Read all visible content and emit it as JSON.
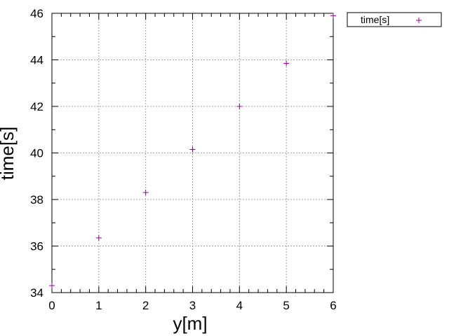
{
  "chart_data": {
    "type": "scatter",
    "title": "",
    "xlabel": "y[m]",
    "ylabel": "time[s]",
    "xlim": [
      0,
      6
    ],
    "ylim": [
      34,
      46
    ],
    "xticks": [
      0,
      1,
      2,
      3,
      4,
      5,
      6
    ],
    "yticks": [
      34,
      36,
      38,
      40,
      42,
      44,
      46
    ],
    "grid": true,
    "legend_position": "outside-top-right",
    "series": [
      {
        "name": "time[s]",
        "color": "#94009a",
        "marker": "plus",
        "x": [
          0,
          1,
          2,
          3,
          4,
          5,
          6
        ],
        "y": [
          34.3,
          36.35,
          38.3,
          40.15,
          42.0,
          43.85,
          45.9
        ]
      }
    ]
  }
}
